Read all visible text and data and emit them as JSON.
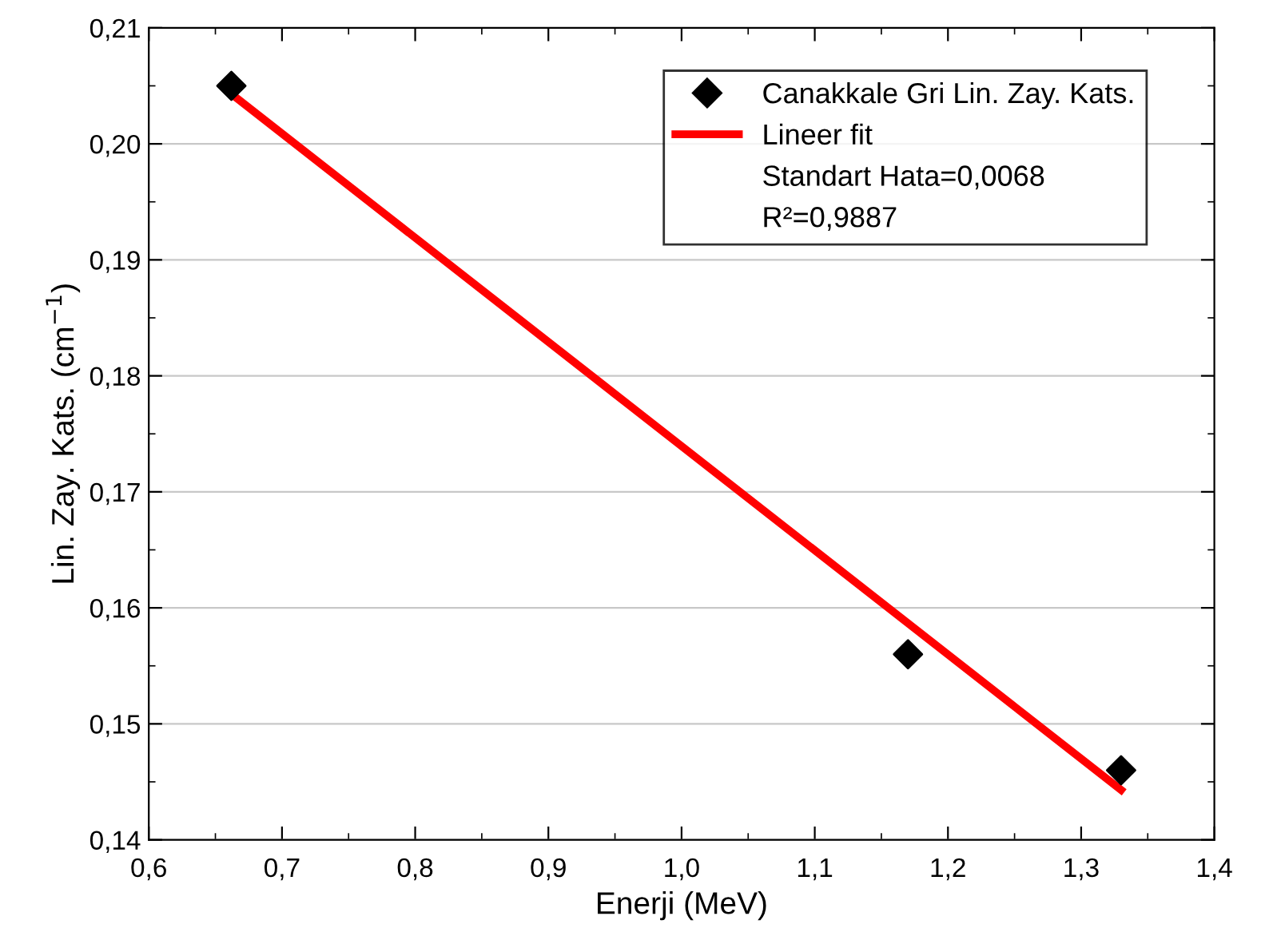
{
  "chart_data": {
    "type": "scatter",
    "xlabel": "Enerji (MeV)",
    "ylabel": "Lin. Zay. Kats. (cm$^{−1}$)",
    "series": [
      {
        "name": "Canakkale Gri Lin. Zay. Kats.",
        "color": "#000000",
        "marker": "diamond",
        "x": [
          0.662,
          1.17,
          1.33
        ],
        "values": [
          0.205,
          0.156,
          0.146
        ]
      },
      {
        "name": "Lineer fit",
        "type": "line",
        "color": "#ff0000",
        "marker": "none",
        "line_style": "solid",
        "x": [
          0.662,
          1.33
        ],
        "values": [
          0.2043,
          0.1443
        ]
      }
    ],
    "annotations": [
      "Standart Hata=0,0068",
      "R²=0,9887"
    ],
    "xlim": [
      0.6,
      1.4
    ],
    "ylim": [
      0.14,
      0.21
    ],
    "xticks": [
      {
        "value": 0.6,
        "label": "0,6"
      },
      {
        "value": 0.7,
        "label": "0,7"
      },
      {
        "value": 0.8,
        "label": "0,8"
      },
      {
        "value": 0.9,
        "label": "0,9"
      },
      {
        "value": 1.0,
        "label": "1,0"
      },
      {
        "value": 1.1,
        "label": "1,1"
      },
      {
        "value": 1.2,
        "label": "1,2"
      },
      {
        "value": 1.3,
        "label": "1,3"
      },
      {
        "value": 1.4,
        "label": "1,4"
      }
    ],
    "yticks": [
      {
        "value": 0.14,
        "label": "0,14"
      },
      {
        "value": 0.15,
        "label": "0,15"
      },
      {
        "value": 0.16,
        "label": "0,16"
      },
      {
        "value": 0.17,
        "label": "0,17"
      },
      {
        "value": 0.18,
        "label": "0,18"
      },
      {
        "value": 0.19,
        "label": "0,19"
      },
      {
        "value": 0.2,
        "label": "0,20"
      },
      {
        "value": 0.21,
        "label": "0,21"
      }
    ],
    "grid": "y",
    "legend": "top right"
  }
}
